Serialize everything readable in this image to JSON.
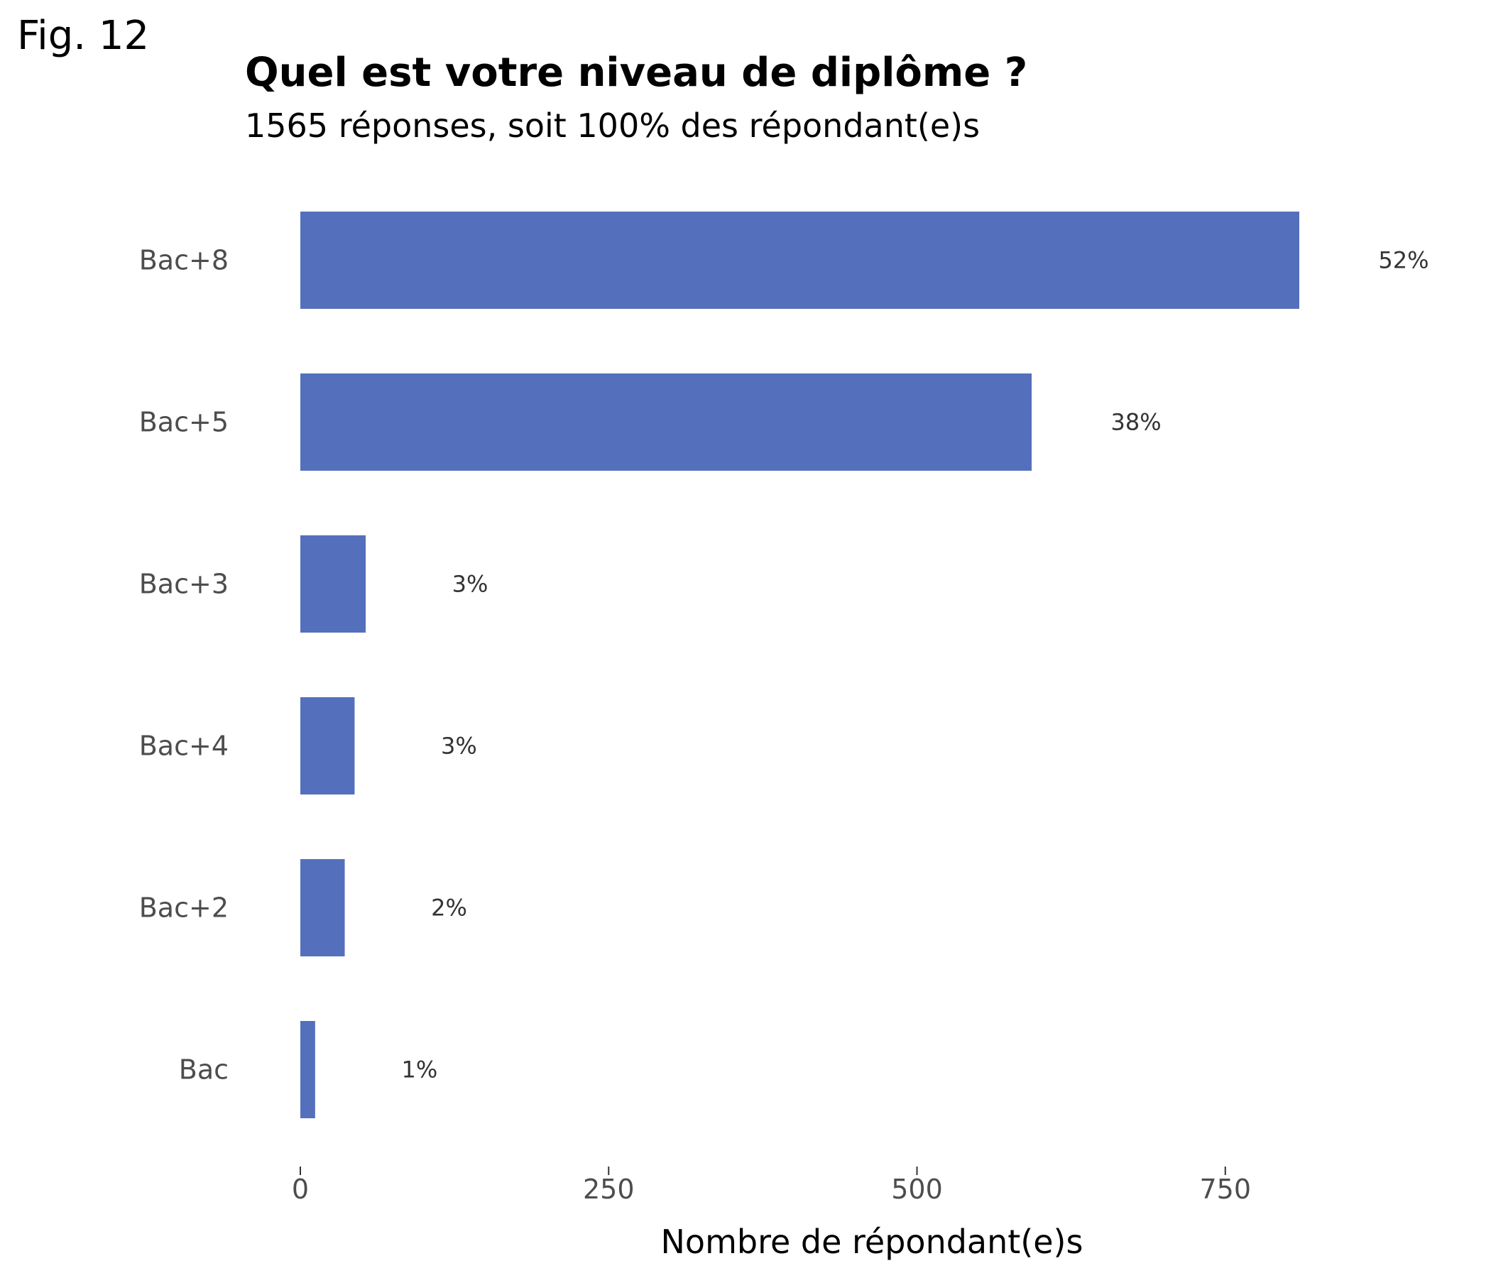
{
  "figure_label": "Fig. 12",
  "chart_data": {
    "type": "bar",
    "orientation": "horizontal",
    "title": "Quel est votre niveau de diplôme ?",
    "subtitle": "1565 réponses, soit 100% des répondant(e)s",
    "xlabel": "Nombre de répondant(e)s",
    "ylabel": "",
    "categories": [
      "Bac+8",
      "Bac+5",
      "Bac+3",
      "Bac+4",
      "Bac+2",
      "Bac"
    ],
    "values": [
      810,
      593,
      53,
      44,
      36,
      12
    ],
    "data_labels": [
      "52%",
      "38%",
      "3%",
      "3%",
      "2%",
      "1%"
    ],
    "xlim": [
      0,
      930
    ],
    "x_ticks": [
      0,
      250,
      500,
      750
    ],
    "x_tick_labels": [
      "0",
      "250",
      "500",
      "750"
    ],
    "grid": false,
    "colors": {
      "bar": "#5470bc"
    }
  }
}
